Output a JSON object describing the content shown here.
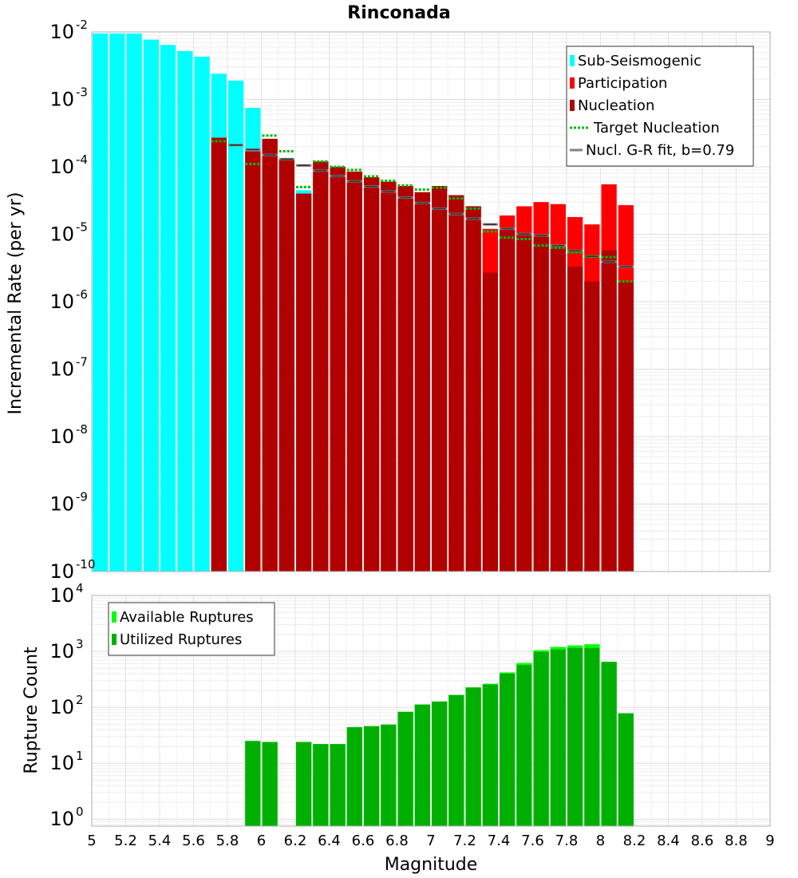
{
  "chart_data": [
    {
      "type": "bar",
      "title": "Rinconada",
      "xlabel": "",
      "ylabel": "Incremental Rate (per yr)",
      "yscale": "log",
      "ylim": [
        1e-10,
        0.01
      ],
      "xlim": [
        5,
        9
      ],
      "grid": true,
      "legend_position": "top-right",
      "y_ticks": [
        {
          "base": "10",
          "exp": "-2"
        },
        {
          "base": "10",
          "exp": "-3"
        },
        {
          "base": "10",
          "exp": "-4"
        },
        {
          "base": "10",
          "exp": "-5"
        },
        {
          "base": "10",
          "exp": "-6"
        },
        {
          "base": "10",
          "exp": "-7"
        },
        {
          "base": "10",
          "exp": "-8"
        },
        {
          "base": "10",
          "exp": "-9"
        },
        {
          "base": "10",
          "exp": "-10"
        }
      ],
      "legend": [
        {
          "label": "Sub-Seismogenic",
          "kind": "bar",
          "color": "#00ffff"
        },
        {
          "label": "Participation",
          "kind": "bar",
          "color": "#ff0000"
        },
        {
          "label": "Nucleation",
          "kind": "bar",
          "color": "#b00000"
        },
        {
          "label": "Target Nucleation",
          "kind": "dotted",
          "color": "#00bb00"
        },
        {
          "label": "Nucl. G-R fit, b=0.79",
          "kind": "line",
          "color": "#808080"
        }
      ],
      "series": [
        {
          "name": "Sub-Seismogenic",
          "color": "#00ffff",
          "x": [
            5.05,
            5.15,
            5.25,
            5.35,
            5.45,
            5.55,
            5.65,
            5.75,
            5.85,
            5.95,
            6.25
          ],
          "values": [
            0.0095,
            0.0095,
            0.0095,
            0.0077,
            0.0064,
            0.0052,
            0.0043,
            0.0024,
            0.0019,
            0.00075,
            4.5e-05
          ]
        },
        {
          "name": "Participation",
          "color": "#ff0000",
          "x": [
            5.75,
            5.95,
            6.05,
            6.15,
            6.25,
            6.35,
            6.45,
            6.55,
            6.65,
            6.75,
            6.85,
            6.95,
            7.05,
            7.15,
            7.25,
            7.35,
            7.45,
            7.55,
            7.65,
            7.75,
            7.85,
            7.95,
            8.05,
            8.15
          ],
          "values": [
            0.00027,
            0.00017,
            0.00026,
            0.00013,
            4e-05,
            0.00012,
            0.0001,
            8.5e-05,
            7e-05,
            6e-05,
            5.2e-05,
            4.2e-05,
            5.2e-05,
            3.8e-05,
            2.6e-05,
            1.2e-05,
            1.9e-05,
            2.6e-05,
            3e-05,
            2.8e-05,
            1.8e-05,
            1.4e-05,
            5.5e-05,
            2.7e-05
          ]
        },
        {
          "name": "Nucleation",
          "color": "#b00000",
          "x": [
            5.75,
            5.95,
            6.05,
            6.15,
            6.25,
            6.35,
            6.45,
            6.55,
            6.65,
            6.75,
            6.85,
            6.95,
            7.05,
            7.15,
            7.25,
            7.35,
            7.45,
            7.55,
            7.65,
            7.75,
            7.85,
            7.95,
            8.05,
            8.15
          ],
          "values": [
            0.00027,
            0.00017,
            0.00026,
            0.00013,
            4e-05,
            0.00012,
            0.0001,
            8.5e-05,
            7e-05,
            6e-05,
            5.2e-05,
            4.2e-05,
            5.2e-05,
            3.8e-05,
            2.6e-05,
            2.7e-06,
            1.15e-05,
            1.05e-05,
            9.2e-06,
            6.5e-06,
            3.3e-06,
            2e-06,
            5.8e-06,
            2e-06
          ]
        },
        {
          "name": "Target Nucleation",
          "color": "#00bb00",
          "x": [
            5.75,
            5.95,
            6.05,
            6.15,
            6.25,
            6.35,
            6.45,
            6.55,
            6.65,
            6.75,
            6.85,
            6.95,
            7.05,
            7.15,
            7.25,
            7.35,
            7.45,
            7.55,
            7.65,
            7.75,
            7.85,
            7.95,
            8.05,
            8.15
          ],
          "values": [
            0.00024,
            0.00011,
            0.00029,
            0.00017,
            5e-05,
            0.00012,
            0.0001,
            9e-05,
            7.2e-05,
            6.2e-05,
            5.3e-05,
            4.6e-05,
            4.9e-05,
            3.4e-05,
            2.4e-05,
            1.1e-05,
            8.9e-06,
            8.5e-06,
            6.8e-06,
            6.3e-06,
            5.4e-06,
            4.7e-06,
            4.6e-06,
            2e-06
          ]
        },
        {
          "name": "Nucl. G-R fit, b=0.79",
          "color": "#808080",
          "x": [
            5.85,
            5.95,
            6.05,
            6.15,
            6.25,
            6.35,
            6.45,
            6.55,
            6.65,
            6.75,
            6.85,
            6.95,
            7.05,
            7.15,
            7.25,
            7.35,
            7.45,
            7.55,
            7.65,
            7.75,
            7.85,
            7.95,
            8.05,
            8.15
          ],
          "values": [
            0.00021,
            0.00018,
            0.00015,
            0.00013,
            0.000105,
            8.8e-05,
            7.3e-05,
            6.1e-05,
            5.1e-05,
            4.3e-05,
            3.5e-05,
            2.9e-05,
            2.4e-05,
            2e-05,
            1.7e-05,
            1.4e-05,
            1.21e-05,
            1.01e-05,
            9.6e-06,
            6.8e-06,
            5.7e-06,
            4.7e-06,
            3.9e-06,
            3.3e-06
          ]
        }
      ]
    },
    {
      "type": "bar",
      "title": "",
      "xlabel": "Magnitude",
      "ylabel": "Rupture Count",
      "yscale": "log",
      "ylim": [
        0.75,
        10000
      ],
      "xlim": [
        5,
        9
      ],
      "grid": true,
      "legend_position": "top-left",
      "x_ticks": [
        "5",
        "5.2",
        "5.4",
        "5.6",
        "5.8",
        "6",
        "6.2",
        "6.4",
        "6.6",
        "6.8",
        "7",
        "7.2",
        "7.4",
        "7.6",
        "7.8",
        "8",
        "8.2",
        "8.4",
        "8.6",
        "8.8",
        "9"
      ],
      "y_ticks": [
        {
          "base": "10",
          "exp": "4"
        },
        {
          "base": "10",
          "exp": "3"
        },
        {
          "base": "10",
          "exp": "2"
        },
        {
          "base": "10",
          "exp": "1"
        },
        {
          "base": "10",
          "exp": "0"
        }
      ],
      "legend": [
        {
          "label": "Available Ruptures",
          "kind": "bar",
          "color": "#00ff00"
        },
        {
          "label": "Utilized Ruptures",
          "kind": "bar",
          "color": "#00b000"
        }
      ],
      "series": [
        {
          "name": "Available Ruptures",
          "color": "#00ff00",
          "x": [
            5.95,
            6.05,
            6.25,
            6.35,
            6.45,
            6.55,
            6.65,
            6.75,
            6.85,
            6.95,
            7.05,
            7.15,
            7.25,
            7.35,
            7.45,
            7.55,
            7.65,
            7.75,
            7.85,
            7.95,
            8.05,
            8.15
          ],
          "values": [
            25,
            24,
            24,
            22,
            22,
            44,
            46,
            49,
            83,
            112,
            127,
            166,
            228,
            264,
            420,
            620,
            1050,
            1200,
            1280,
            1340,
            650,
            78
          ]
        },
        {
          "name": "Utilized Ruptures",
          "color": "#00b000",
          "x": [
            5.95,
            6.05,
            6.25,
            6.35,
            6.45,
            6.55,
            6.65,
            6.75,
            6.85,
            6.95,
            7.05,
            7.15,
            7.25,
            7.35,
            7.45,
            7.55,
            7.65,
            7.75,
            7.85,
            7.95,
            8.05,
            8.15
          ],
          "values": [
            25,
            24,
            24,
            22,
            22,
            44,
            46,
            49,
            83,
            112,
            127,
            166,
            225,
            255,
            400,
            570,
            980,
            1080,
            1150,
            1150,
            650,
            78
          ]
        }
      ]
    }
  ]
}
